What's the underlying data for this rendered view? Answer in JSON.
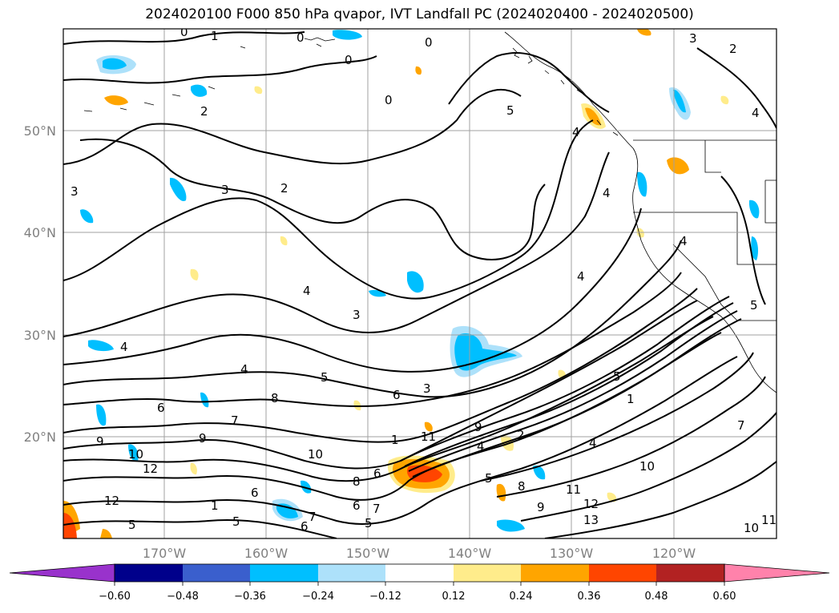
{
  "title": "2024020100 F000 850 hPa qvapor, IVT Landfall PC (2024020400 - 2024020500)",
  "map": {
    "lat_ticks": [
      "20°N",
      "30°N",
      "40°N",
      "50°N"
    ],
    "lon_ticks": [
      "170°W",
      "160°W",
      "150°W",
      "140°W",
      "130°W",
      "120°W"
    ],
    "grid": true
  },
  "colorbar": {
    "tick_labels": [
      "−0.60",
      "−0.48",
      "−0.36",
      "−0.24",
      "−0.12",
      "0.12",
      "0.24",
      "0.36",
      "0.48",
      "0.60"
    ],
    "colors": [
      "#9932CC",
      "#00008B",
      "#3A5FCD",
      "#00BFFF",
      "#ADE1FA",
      "#FFFFFF",
      "#FFEC8B",
      "#FFA500",
      "#FF4500",
      "#B22222",
      "#FF82AB"
    ]
  },
  "contour_labels": [
    "0",
    "1",
    "2",
    "3",
    "4",
    "5",
    "6",
    "7",
    "8",
    "9",
    "10",
    "11",
    "12",
    "13"
  ]
}
